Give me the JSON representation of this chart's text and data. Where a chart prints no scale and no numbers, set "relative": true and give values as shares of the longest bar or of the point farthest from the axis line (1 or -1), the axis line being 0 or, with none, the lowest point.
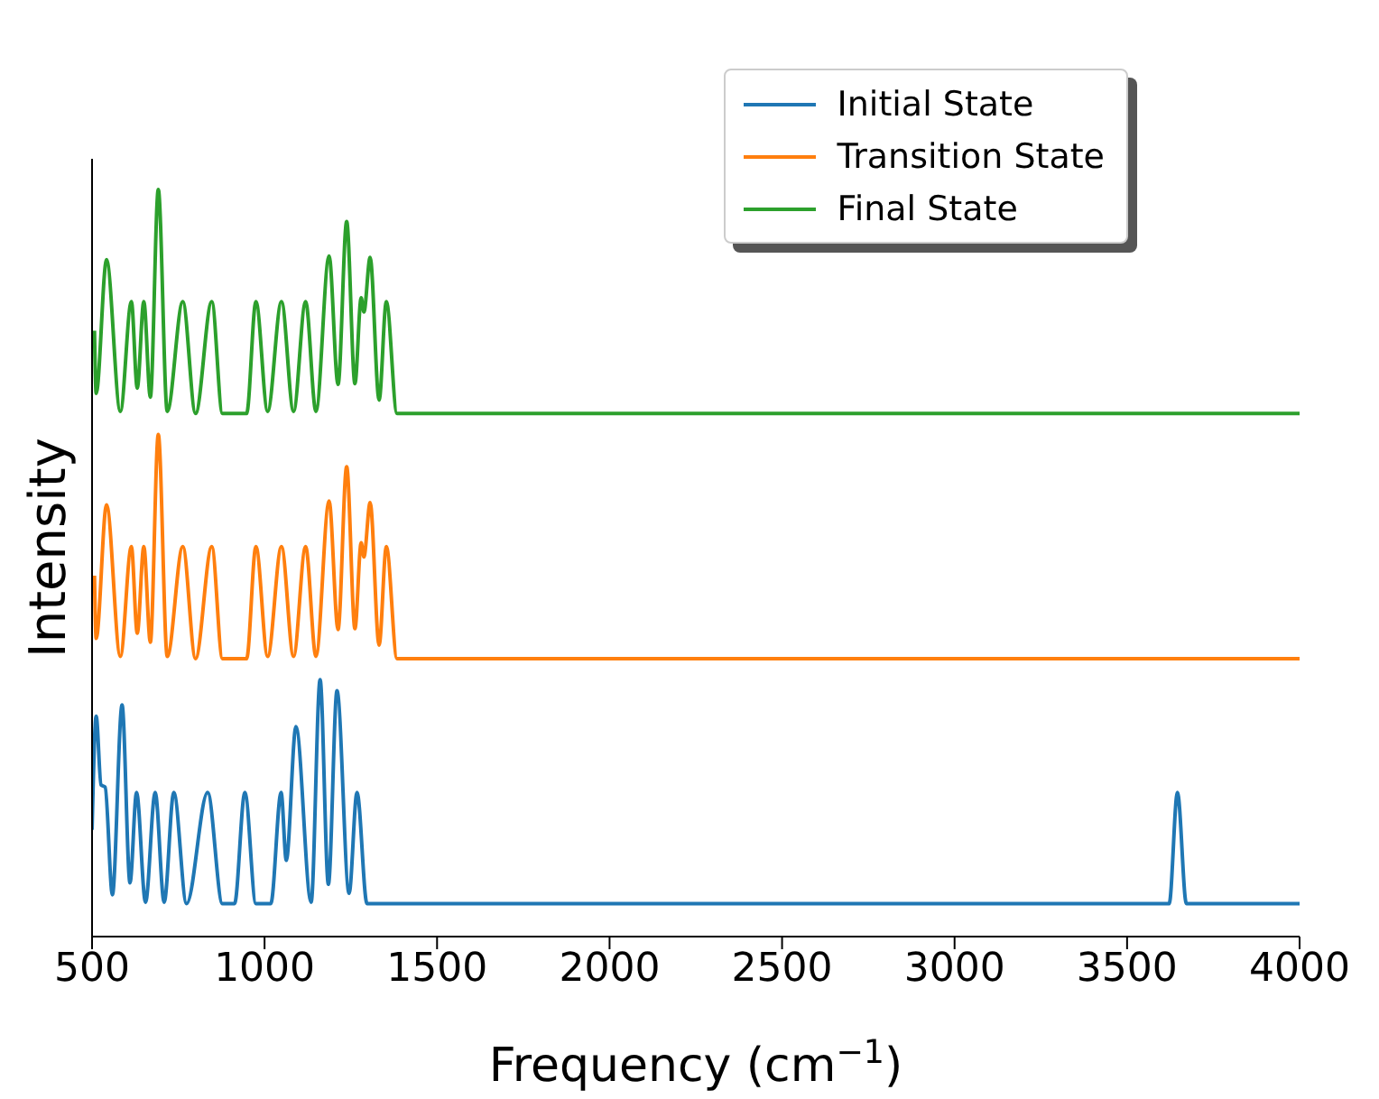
{
  "chart_data": {
    "type": "line",
    "relative": true,
    "xlabel": "Frequency (cm$^{−1}$)",
    "ylabel": "Intensity",
    "xlim": [
      500,
      4000
    ],
    "xticks": [
      500,
      1000,
      1500,
      2000,
      2500,
      3000,
      3500,
      4000
    ],
    "legend": "top right",
    "series": [
      {
        "name": "Initial State",
        "color": "#1f77b4",
        "x": [
          500,
          512,
          526,
          538,
          559,
          587,
          610,
          629,
          655,
          683,
          709,
          737,
          774,
          835,
          878,
          913,
          943,
          975,
          1018,
          1048,
          1063,
          1091,
          1135,
          1161,
          1185,
          1210,
          1245,
          1268,
          1297,
          3622,
          3646,
          3672,
          4000
        ],
        "values": [
          0.143,
          0.295,
          0.203,
          0.2,
          0.056,
          0.31,
          0.072,
          0.193,
          0.046,
          0.193,
          0.046,
          0.193,
          0.044,
          0.193,
          0.044,
          0.044,
          0.193,
          0.044,
          0.044,
          0.193,
          0.102,
          0.281,
          0.046,
          0.344,
          0.07,
          0.329,
          0.058,
          0.193,
          0.044,
          0.044,
          0.193,
          0.044,
          0.044
        ]
      },
      {
        "name": "Transition State",
        "color": "#ff7f0e",
        "x": [
          507,
          512,
          542,
          582,
          614,
          631,
          650,
          669,
          692,
          718,
          763,
          800,
          847,
          878,
          948,
          975,
          1009,
          1049,
          1084,
          1119,
          1149,
          1187,
          1213,
          1238,
          1262,
          1280,
          1288,
          1306,
          1332,
          1353,
          1384,
          4000
        ],
        "values": [
          0.483,
          0.399,
          0.578,
          0.375,
          0.522,
          0.406,
          0.522,
          0.394,
          0.672,
          0.375,
          0.522,
          0.372,
          0.522,
          0.372,
          0.372,
          0.522,
          0.375,
          0.522,
          0.375,
          0.522,
          0.375,
          0.583,
          0.411,
          0.629,
          0.412,
          0.527,
          0.508,
          0.581,
          0.39,
          0.522,
          0.372,
          0.372
        ]
      },
      {
        "name": "Final State",
        "color": "#2ca02c",
        "x": [
          507,
          512,
          542,
          582,
          614,
          631,
          650,
          669,
          692,
          718,
          763,
          800,
          847,
          878,
          948,
          975,
          1009,
          1049,
          1084,
          1119,
          1149,
          1187,
          1213,
          1238,
          1262,
          1280,
          1288,
          1306,
          1332,
          1353,
          1384,
          4000
        ],
        "values": [
          0.811,
          0.727,
          0.906,
          0.703,
          0.85,
          0.734,
          0.85,
          0.722,
          1.0,
          0.703,
          0.85,
          0.7,
          0.85,
          0.7,
          0.7,
          0.85,
          0.703,
          0.85,
          0.703,
          0.85,
          0.703,
          0.911,
          0.739,
          0.957,
          0.74,
          0.855,
          0.836,
          0.909,
          0.718,
          0.85,
          0.7,
          0.7
        ]
      }
    ]
  }
}
